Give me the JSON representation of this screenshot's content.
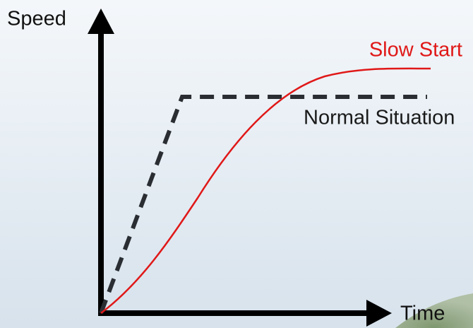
{
  "axes": {
    "y": "Speed",
    "x": "Time"
  },
  "curves": [
    {
      "label": "Slow Start"
    },
    {
      "label": "Normal Situation"
    }
  ]
}
